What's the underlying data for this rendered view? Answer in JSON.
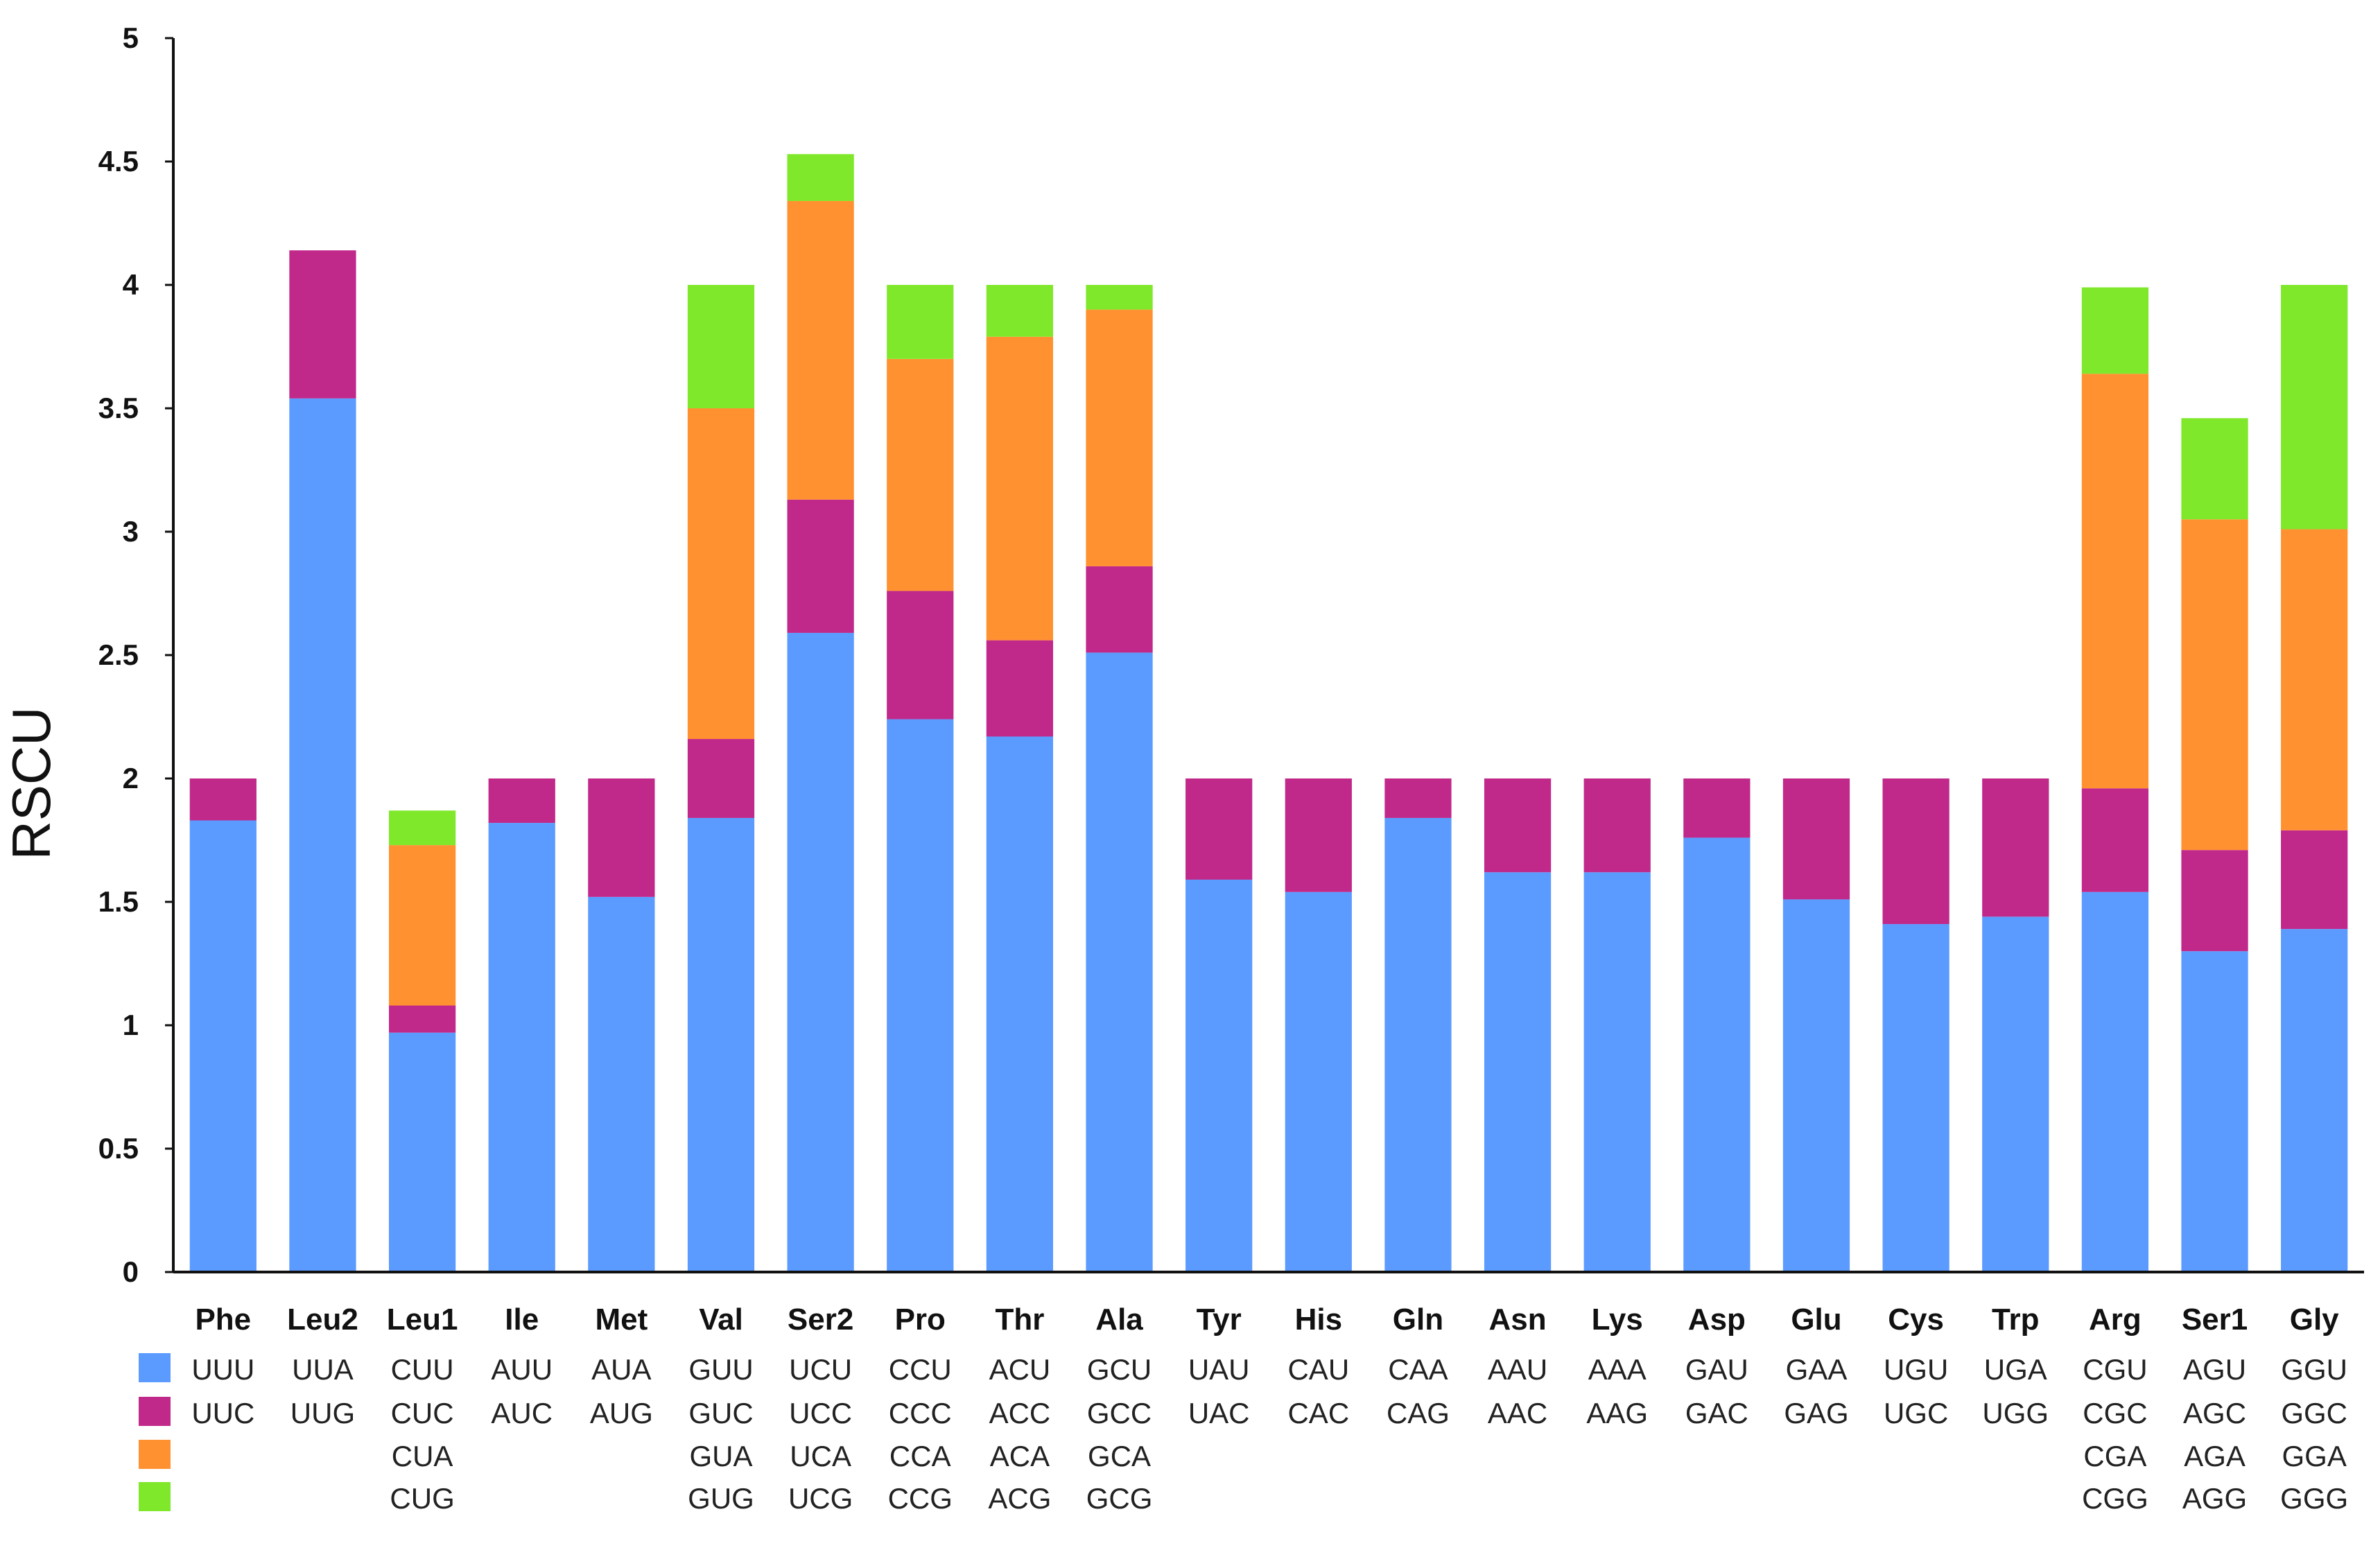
{
  "chart_data": {
    "type": "bar",
    "stacked": true,
    "title": "",
    "xlabel": "",
    "ylabel": "RSCU",
    "ylim": [
      0,
      5
    ],
    "yticks": [
      "0",
      "0.5",
      "1",
      "1.5",
      "2",
      "2.5",
      "3",
      "3.5",
      "4",
      "4.5",
      "5"
    ],
    "colors": [
      "#5B9BFF",
      "#C0288A",
      "#FF9130",
      "#7FE82A"
    ],
    "categories": [
      {
        "name": "Phe",
        "codons": [
          "UUU",
          "UUC"
        ],
        "values": [
          1.83,
          0.17
        ]
      },
      {
        "name": "Leu2",
        "codons": [
          "UUA",
          "UUG"
        ],
        "values": [
          3.54,
          0.6
        ]
      },
      {
        "name": "Leu1",
        "codons": [
          "CUU",
          "CUC",
          "CUA",
          "CUG"
        ],
        "values": [
          0.97,
          0.11,
          0.65,
          0.14
        ]
      },
      {
        "name": "Ile",
        "codons": [
          "AUU",
          "AUC"
        ],
        "values": [
          1.82,
          0.18
        ]
      },
      {
        "name": "Met",
        "codons": [
          "AUA",
          "AUG"
        ],
        "values": [
          1.52,
          0.48
        ]
      },
      {
        "name": "Val",
        "codons": [
          "GUU",
          "GUC",
          "GUA",
          "GUG"
        ],
        "values": [
          1.84,
          0.32,
          1.34,
          0.5
        ]
      },
      {
        "name": "Ser2",
        "codons": [
          "UCU",
          "UCC",
          "UCA",
          "UCG"
        ],
        "values": [
          2.59,
          0.54,
          1.21,
          0.19
        ]
      },
      {
        "name": "Pro",
        "codons": [
          "CCU",
          "CCC",
          "CCA",
          "CCG"
        ],
        "values": [
          2.24,
          0.52,
          0.94,
          0.3
        ]
      },
      {
        "name": "Thr",
        "codons": [
          "ACU",
          "ACC",
          "ACA",
          "ACG"
        ],
        "values": [
          2.17,
          0.39,
          1.23,
          0.21
        ]
      },
      {
        "name": "Ala",
        "codons": [
          "GCU",
          "GCC",
          "GCA",
          "GCG"
        ],
        "values": [
          2.51,
          0.35,
          1.04,
          0.1
        ]
      },
      {
        "name": "Tyr",
        "codons": [
          "UAU",
          "UAC"
        ],
        "values": [
          1.59,
          0.41
        ]
      },
      {
        "name": "His",
        "codons": [
          "CAU",
          "CAC"
        ],
        "values": [
          1.54,
          0.46
        ]
      },
      {
        "name": "Gln",
        "codons": [
          "CAA",
          "CAG"
        ],
        "values": [
          1.84,
          0.16
        ]
      },
      {
        "name": "Asn",
        "codons": [
          "AAU",
          "AAC"
        ],
        "values": [
          1.62,
          0.38
        ]
      },
      {
        "name": "Lys",
        "codons": [
          "AAA",
          "AAG"
        ],
        "values": [
          1.62,
          0.38
        ]
      },
      {
        "name": "Asp",
        "codons": [
          "GAU",
          "GAC"
        ],
        "values": [
          1.76,
          0.24
        ]
      },
      {
        "name": "Glu",
        "codons": [
          "GAA",
          "GAG"
        ],
        "values": [
          1.51,
          0.49
        ]
      },
      {
        "name": "Cys",
        "codons": [
          "UGU",
          "UGC"
        ],
        "values": [
          1.41,
          0.59
        ]
      },
      {
        "name": "Trp",
        "codons": [
          "UGA",
          "UGG"
        ],
        "values": [
          1.44,
          0.56
        ]
      },
      {
        "name": "Arg",
        "codons": [
          "CGU",
          "CGC",
          "CGA",
          "CGG"
        ],
        "values": [
          1.54,
          0.42,
          1.68,
          0.35
        ]
      },
      {
        "name": "Ser1",
        "codons": [
          "AGU",
          "AGC",
          "AGA",
          "AGG"
        ],
        "values": [
          1.3,
          0.41,
          1.34,
          0.41
        ]
      },
      {
        "name": "Gly",
        "codons": [
          "GGU",
          "GGC",
          "GGA",
          "GGG"
        ],
        "values": [
          1.39,
          0.4,
          1.22,
          0.99
        ]
      }
    ]
  }
}
